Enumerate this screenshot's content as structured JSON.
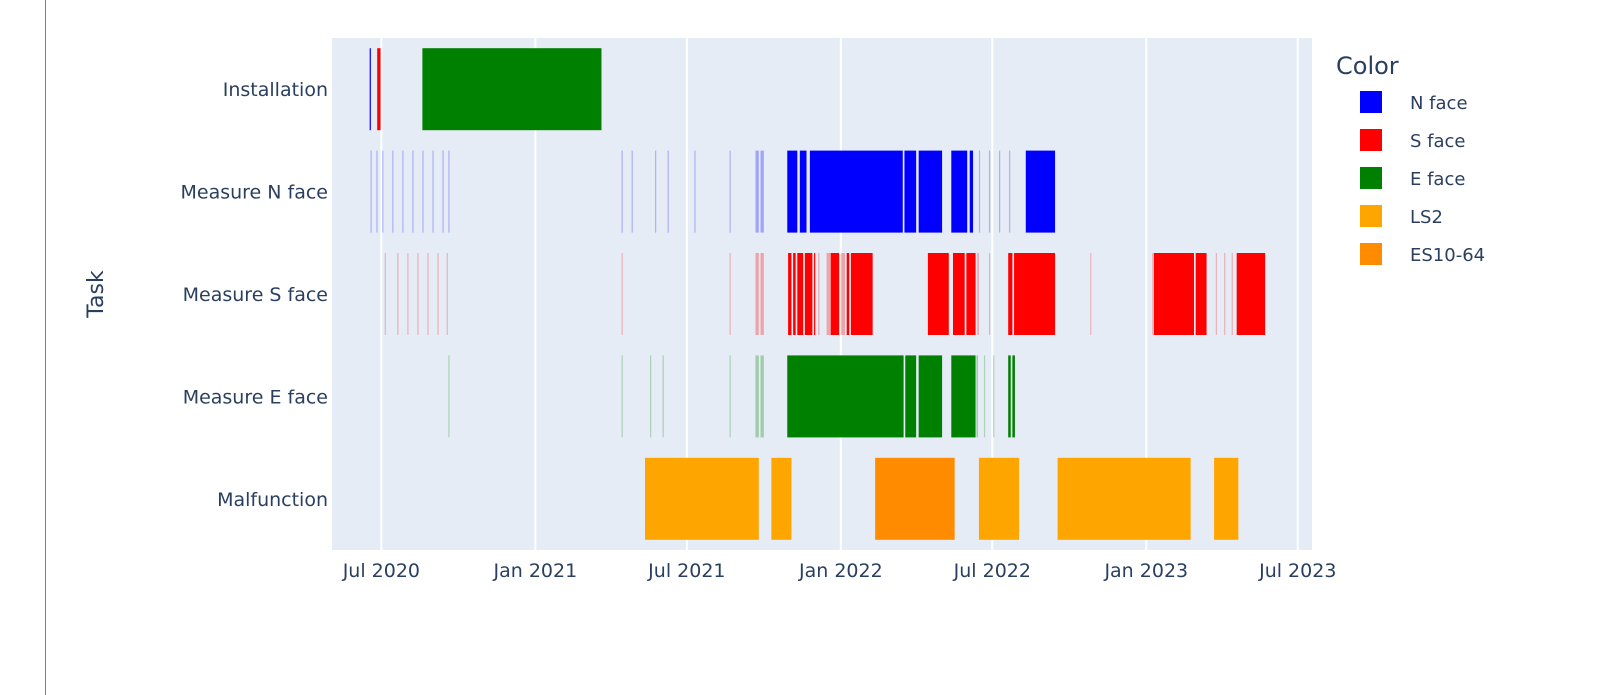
{
  "chart_data": {
    "type": "timeline",
    "title": "",
    "xlabel": "",
    "ylabel": "Task",
    "x_ticks": [
      "Jul 2020",
      "Jan 2021",
      "Jul 2021",
      "Jan 2022",
      "Jul 2022",
      "Jan 2023",
      "Jul 2023"
    ],
    "x_range": [
      "2020-05-03",
      "2023-07-18"
    ],
    "categories": [
      "Installation",
      "Measure N face",
      "Measure S face",
      "Measure E face",
      "Malfunction"
    ],
    "grid": true,
    "legend": {
      "title": "Color",
      "position": "right",
      "items": [
        {
          "name": "N face",
          "color": "#0000ff"
        },
        {
          "name": "S face",
          "color": "#ff0000"
        },
        {
          "name": "E face",
          "color": "#008000"
        },
        {
          "name": "LS2",
          "color": "#ffa500"
        },
        {
          "name": "ES10-64",
          "color": "#ff8c00"
        }
      ]
    },
    "tasks": [
      {
        "task": "Installation",
        "start": "2020-06-17",
        "end": "2020-06-18",
        "color": "N face"
      },
      {
        "task": "Installation",
        "start": "2020-06-26",
        "end": "2020-06-30",
        "color": "S face"
      },
      {
        "task": "Installation",
        "start": "2020-08-19",
        "end": "2021-03-21",
        "color": "E face"
      },
      {
        "task": "Measure N face",
        "start": "2020-06-18",
        "end": "2020-06-19",
        "color": "N face",
        "opacity": 0.25
      },
      {
        "task": "Measure N face",
        "start": "2020-06-25",
        "end": "2020-06-26",
        "color": "N face",
        "opacity": 0.25
      },
      {
        "task": "Measure N face",
        "start": "2020-07-02",
        "end": "2020-07-03",
        "color": "N face",
        "opacity": 0.25
      },
      {
        "task": "Measure N face",
        "start": "2020-07-14",
        "end": "2020-07-15",
        "color": "N face",
        "opacity": 0.25
      },
      {
        "task": "Measure N face",
        "start": "2020-07-26",
        "end": "2020-07-27",
        "color": "N face",
        "opacity": 0.25
      },
      {
        "task": "Measure N face",
        "start": "2020-08-07",
        "end": "2020-08-08",
        "color": "N face",
        "opacity": 0.25
      },
      {
        "task": "Measure N face",
        "start": "2020-08-19",
        "end": "2020-08-20",
        "color": "N face",
        "opacity": 0.25
      },
      {
        "task": "Measure N face",
        "start": "2020-08-31",
        "end": "2020-09-01",
        "color": "N face",
        "opacity": 0.25
      },
      {
        "task": "Measure N face",
        "start": "2020-09-12",
        "end": "2020-09-13",
        "color": "N face",
        "opacity": 0.25
      },
      {
        "task": "Measure N face",
        "start": "2020-09-19",
        "end": "2020-09-20",
        "color": "N face",
        "opacity": 0.25
      },
      {
        "task": "Measure N face",
        "start": "2021-04-14",
        "end": "2021-04-15",
        "color": "N face",
        "opacity": 0.25
      },
      {
        "task": "Measure N face",
        "start": "2021-04-26",
        "end": "2021-04-27",
        "color": "N face",
        "opacity": 0.25
      },
      {
        "task": "Measure N face",
        "start": "2021-05-24",
        "end": "2021-05-25",
        "color": "N face",
        "opacity": 0.25
      },
      {
        "task": "Measure N face",
        "start": "2021-06-08",
        "end": "2021-06-09",
        "color": "N face",
        "opacity": 0.25
      },
      {
        "task": "Measure N face",
        "start": "2021-07-10",
        "end": "2021-07-11",
        "color": "N face",
        "opacity": 0.25
      },
      {
        "task": "Measure N face",
        "start": "2021-08-21",
        "end": "2021-08-22",
        "color": "N face",
        "opacity": 0.25
      },
      {
        "task": "Measure N face",
        "start": "2021-09-21",
        "end": "2021-09-25",
        "color": "N face",
        "opacity": 0.3
      },
      {
        "task": "Measure N face",
        "start": "2021-09-27",
        "end": "2021-10-01",
        "color": "N face",
        "opacity": 0.3
      },
      {
        "task": "Measure N face",
        "start": "2021-10-29",
        "end": "2021-11-10",
        "color": "N face"
      },
      {
        "task": "Measure N face",
        "start": "2021-11-13",
        "end": "2021-11-21",
        "color": "N face"
      },
      {
        "task": "Measure N face",
        "start": "2021-11-25",
        "end": "2022-03-16",
        "color": "N face"
      },
      {
        "task": "Measure N face",
        "start": "2022-03-18",
        "end": "2022-04-01",
        "color": "N face"
      },
      {
        "task": "Measure N face",
        "start": "2022-04-04",
        "end": "2022-05-02",
        "color": "N face"
      },
      {
        "task": "Measure N face",
        "start": "2022-05-13",
        "end": "2022-06-01",
        "color": "N face"
      },
      {
        "task": "Measure N face",
        "start": "2022-06-04",
        "end": "2022-06-08",
        "color": "N face"
      },
      {
        "task": "Measure N face",
        "start": "2022-06-15",
        "end": "2022-06-16",
        "color": "N face",
        "opacity": 0.25
      },
      {
        "task": "Measure N face",
        "start": "2022-06-27",
        "end": "2022-06-28",
        "color": "N face",
        "opacity": 0.25
      },
      {
        "task": "Measure N face",
        "start": "2022-07-09",
        "end": "2022-07-10",
        "color": "N face",
        "opacity": 0.25
      },
      {
        "task": "Measure N face",
        "start": "2022-07-21",
        "end": "2022-07-22",
        "color": "N face",
        "opacity": 0.25
      },
      {
        "task": "Measure N face",
        "start": "2022-08-10",
        "end": "2022-09-14",
        "color": "N face"
      },
      {
        "task": "Measure S face",
        "start": "2020-07-05",
        "end": "2020-07-06",
        "color": "S face",
        "opacity": 0.25
      },
      {
        "task": "Measure S face",
        "start": "2020-07-20",
        "end": "2020-07-21",
        "color": "S face",
        "opacity": 0.25
      },
      {
        "task": "Measure S face",
        "start": "2020-08-01",
        "end": "2020-08-02",
        "color": "S face",
        "opacity": 0.25
      },
      {
        "task": "Measure S face",
        "start": "2020-08-13",
        "end": "2020-08-14",
        "color": "S face",
        "opacity": 0.25
      },
      {
        "task": "Measure S face",
        "start": "2020-08-25",
        "end": "2020-08-26",
        "color": "S face",
        "opacity": 0.25
      },
      {
        "task": "Measure S face",
        "start": "2020-09-06",
        "end": "2020-09-07",
        "color": "S face",
        "opacity": 0.25
      },
      {
        "task": "Measure S face",
        "start": "2020-09-17",
        "end": "2020-09-18",
        "color": "S face",
        "opacity": 0.25
      },
      {
        "task": "Measure S face",
        "start": "2021-04-14",
        "end": "2021-04-15",
        "color": "S face",
        "opacity": 0.25
      },
      {
        "task": "Measure S face",
        "start": "2021-08-21",
        "end": "2021-08-22",
        "color": "S face",
        "opacity": 0.25
      },
      {
        "task": "Measure S face",
        "start": "2021-09-21",
        "end": "2021-09-25",
        "color": "S face",
        "opacity": 0.3
      },
      {
        "task": "Measure S face",
        "start": "2021-09-27",
        "end": "2021-10-01",
        "color": "S face",
        "opacity": 0.3
      },
      {
        "task": "Measure S face",
        "start": "2021-10-30",
        "end": "2021-11-03",
        "color": "S face"
      },
      {
        "task": "Measure S face",
        "start": "2021-11-05",
        "end": "2021-11-08",
        "color": "S face"
      },
      {
        "task": "Measure S face",
        "start": "2021-11-10",
        "end": "2021-11-17",
        "color": "S face"
      },
      {
        "task": "Measure S face",
        "start": "2021-11-19",
        "end": "2021-11-28",
        "color": "S face"
      },
      {
        "task": "Measure S face",
        "start": "2021-11-30",
        "end": "2021-12-01",
        "color": "S face"
      },
      {
        "task": "Measure S face",
        "start": "2021-12-05",
        "end": "2021-12-06",
        "color": "S face",
        "opacity": 0.3
      },
      {
        "task": "Measure S face",
        "start": "2021-12-15",
        "end": "2021-12-20",
        "color": "S face",
        "opacity": 0.3
      },
      {
        "task": "Measure S face",
        "start": "2021-12-20",
        "end": "2021-12-30",
        "color": "S face"
      },
      {
        "task": "Measure S face",
        "start": "2022-01-01",
        "end": "2022-01-06",
        "color": "S face",
        "opacity": 0.3
      },
      {
        "task": "Measure S face",
        "start": "2022-01-08",
        "end": "2022-01-11",
        "color": "S face"
      },
      {
        "task": "Measure S face",
        "start": "2022-01-13",
        "end": "2022-02-08",
        "color": "S face"
      },
      {
        "task": "Measure S face",
        "start": "2022-04-15",
        "end": "2022-05-10",
        "color": "S face"
      },
      {
        "task": "Measure S face",
        "start": "2022-05-15",
        "end": "2022-05-29",
        "color": "S face"
      },
      {
        "task": "Measure S face",
        "start": "2022-05-31",
        "end": "2022-06-11",
        "color": "S face"
      },
      {
        "task": "Measure S face",
        "start": "2022-06-13",
        "end": "2022-06-15",
        "color": "S face",
        "opacity": 0.3
      },
      {
        "task": "Measure S face",
        "start": "2022-06-27",
        "end": "2022-06-28",
        "color": "S face",
        "opacity": 0.25
      },
      {
        "task": "Measure S face",
        "start": "2022-07-20",
        "end": "2022-07-25",
        "color": "S face"
      },
      {
        "task": "Measure S face",
        "start": "2022-07-27",
        "end": "2022-09-14",
        "color": "S face"
      },
      {
        "task": "Measure S face",
        "start": "2022-10-26",
        "end": "2022-10-27",
        "color": "S face",
        "opacity": 0.25
      },
      {
        "task": "Measure S face",
        "start": "2023-01-08",
        "end": "2023-01-09",
        "color": "S face",
        "opacity": 0.25
      },
      {
        "task": "Measure S face",
        "start": "2023-01-10",
        "end": "2023-02-27",
        "color": "S face"
      },
      {
        "task": "Measure S face",
        "start": "2023-03-01",
        "end": "2023-03-14",
        "color": "S face"
      },
      {
        "task": "Measure S face",
        "start": "2023-03-25",
        "end": "2023-03-26",
        "color": "S face",
        "opacity": 0.25
      },
      {
        "task": "Measure S face",
        "start": "2023-04-04",
        "end": "2023-04-05",
        "color": "S face",
        "opacity": 0.25
      },
      {
        "task": "Measure S face",
        "start": "2023-04-13",
        "end": "2023-04-14",
        "color": "S face",
        "opacity": 0.25
      },
      {
        "task": "Measure S face",
        "start": "2023-04-19",
        "end": "2023-05-23",
        "color": "S face"
      },
      {
        "task": "Measure E face",
        "start": "2020-09-19",
        "end": "2020-09-20",
        "color": "E face",
        "opacity": 0.25
      },
      {
        "task": "Measure E face",
        "start": "2021-04-14",
        "end": "2021-04-15",
        "color": "E face",
        "opacity": 0.25
      },
      {
        "task": "Measure E face",
        "start": "2021-05-18",
        "end": "2021-05-19",
        "color": "E face",
        "opacity": 0.25
      },
      {
        "task": "Measure E face",
        "start": "2021-06-02",
        "end": "2021-06-03",
        "color": "E face",
        "opacity": 0.25
      },
      {
        "task": "Measure E face",
        "start": "2021-08-21",
        "end": "2021-08-22",
        "color": "E face",
        "opacity": 0.25
      },
      {
        "task": "Measure E face",
        "start": "2021-09-21",
        "end": "2021-09-25",
        "color": "E face",
        "opacity": 0.3
      },
      {
        "task": "Measure E face",
        "start": "2021-09-27",
        "end": "2021-10-01",
        "color": "E face",
        "opacity": 0.3
      },
      {
        "task": "Measure E face",
        "start": "2021-10-29",
        "end": "2022-03-17",
        "color": "E face"
      },
      {
        "task": "Measure E face",
        "start": "2022-03-19",
        "end": "2022-04-01",
        "color": "E face"
      },
      {
        "task": "Measure E face",
        "start": "2022-04-04",
        "end": "2022-05-02",
        "color": "E face"
      },
      {
        "task": "Measure E face",
        "start": "2022-05-13",
        "end": "2022-06-11",
        "color": "E face"
      },
      {
        "task": "Measure E face",
        "start": "2022-06-12",
        "end": "2022-06-14",
        "color": "E face",
        "opacity": 0.3
      },
      {
        "task": "Measure E face",
        "start": "2022-06-21",
        "end": "2022-06-22",
        "color": "E face",
        "opacity": 0.25
      },
      {
        "task": "Measure E face",
        "start": "2022-07-02",
        "end": "2022-07-03",
        "color": "E face",
        "opacity": 0.25
      },
      {
        "task": "Measure E face",
        "start": "2022-07-20",
        "end": "2022-07-23",
        "color": "E face"
      },
      {
        "task": "Measure E face",
        "start": "2022-07-25",
        "end": "2022-07-28",
        "color": "E face"
      },
      {
        "task": "Malfunction",
        "start": "2021-05-12",
        "end": "2021-09-25",
        "color": "LS2"
      },
      {
        "task": "Malfunction",
        "start": "2021-10-10",
        "end": "2021-11-03",
        "color": "LS2"
      },
      {
        "task": "Malfunction",
        "start": "2022-02-11",
        "end": "2022-05-17",
        "color": "ES10-64"
      },
      {
        "task": "Malfunction",
        "start": "2022-06-15",
        "end": "2022-08-02",
        "color": "LS2"
      },
      {
        "task": "Malfunction",
        "start": "2022-09-17",
        "end": "2023-02-23",
        "color": "LS2"
      },
      {
        "task": "Malfunction",
        "start": "2023-03-23",
        "end": "2023-04-21",
        "color": "LS2"
      }
    ]
  }
}
